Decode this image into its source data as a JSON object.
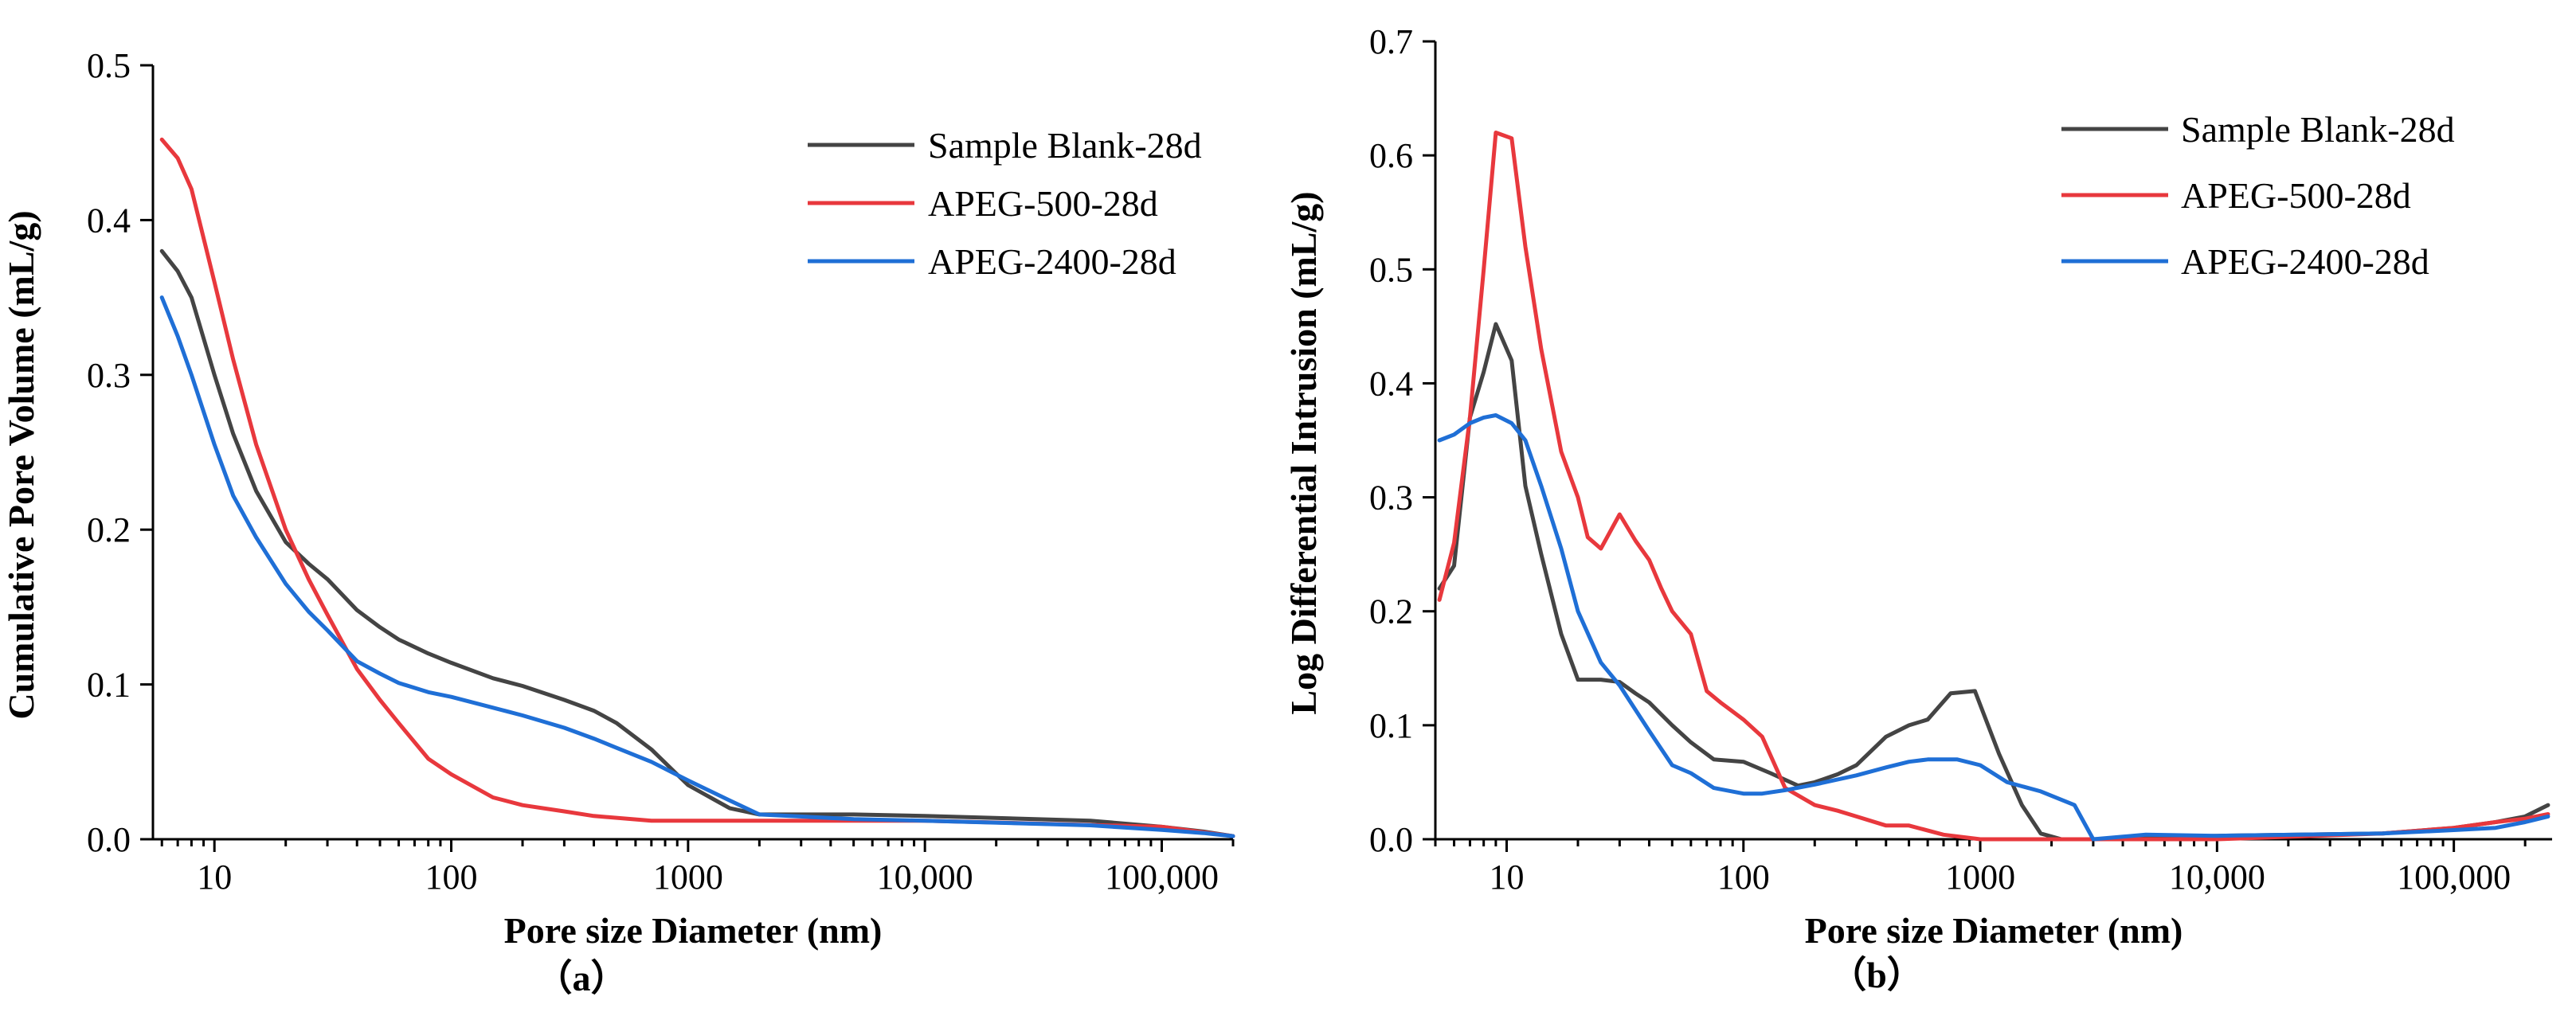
{
  "chart_data": [
    {
      "type": "line",
      "panel_label": "（a）",
      "xlabel": "Pore size Diameter (nm)",
      "ylabel": "Cumulative Pore Volume (mL/g)",
      "xscale": "log",
      "xlim": [
        5.5,
        200000
      ],
      "ylim": [
        0,
        0.5
      ],
      "xticks": [
        {
          "value": 10,
          "label": "10"
        },
        {
          "value": 100,
          "label": "100"
        },
        {
          "value": 1000,
          "label": "1000"
        },
        {
          "value": 10000,
          "label": "10,000"
        },
        {
          "value": 100000,
          "label": "100,000"
        }
      ],
      "yticks": [
        {
          "value": 0,
          "label": "0.0"
        },
        {
          "value": 0.1,
          "label": "0.1"
        },
        {
          "value": 0.2,
          "label": "0.2"
        },
        {
          "value": 0.3,
          "label": "0.3"
        },
        {
          "value": 0.4,
          "label": "0.4"
        },
        {
          "value": 0.5,
          "label": "0.5"
        }
      ],
      "legend_position": "top-right",
      "series": [
        {
          "name": "Sample Blank-28d",
          "color": "#444444",
          "x": [
            6,
            7,
            8,
            10,
            12,
            15,
            20,
            25,
            30,
            40,
            50,
            60,
            80,
            100,
            150,
            200,
            300,
            400,
            500,
            700,
            1000,
            1500,
            2000,
            5000,
            10000,
            50000,
            100000,
            150000,
            200000
          ],
          "y": [
            0.38,
            0.367,
            0.35,
            0.3,
            0.262,
            0.225,
            0.192,
            0.178,
            0.168,
            0.148,
            0.137,
            0.129,
            0.12,
            0.114,
            0.104,
            0.099,
            0.09,
            0.083,
            0.075,
            0.058,
            0.035,
            0.02,
            0.016,
            0.016,
            0.015,
            0.012,
            0.008,
            0.005,
            0.002
          ]
        },
        {
          "name": "APEG-500-28d",
          "color": "#e8383d",
          "x": [
            6,
            7,
            8,
            10,
            12,
            15,
            20,
            25,
            30,
            40,
            50,
            60,
            80,
            100,
            150,
            200,
            300,
            400,
            700,
            1000,
            2000,
            10000,
            100000,
            200000
          ],
          "y": [
            0.452,
            0.44,
            0.42,
            0.36,
            0.31,
            0.255,
            0.2,
            0.168,
            0.145,
            0.11,
            0.09,
            0.075,
            0.052,
            0.042,
            0.027,
            0.022,
            0.018,
            0.015,
            0.012,
            0.012,
            0.012,
            0.012,
            0.008,
            0.002
          ]
        },
        {
          "name": "APEG-2400-28d",
          "color": "#1f6fd6",
          "x": [
            6,
            7,
            8,
            10,
            12,
            15,
            20,
            25,
            30,
            40,
            50,
            60,
            80,
            100,
            150,
            200,
            300,
            400,
            500,
            700,
            1000,
            1500,
            2000,
            5000,
            10000,
            50000,
            100000,
            150000,
            200000
          ],
          "y": [
            0.35,
            0.325,
            0.3,
            0.255,
            0.222,
            0.195,
            0.165,
            0.147,
            0.135,
            0.115,
            0.107,
            0.101,
            0.095,
            0.092,
            0.085,
            0.08,
            0.072,
            0.065,
            0.059,
            0.05,
            0.038,
            0.025,
            0.016,
            0.013,
            0.012,
            0.009,
            0.006,
            0.004,
            0.002
          ]
        }
      ]
    },
    {
      "type": "line",
      "panel_label": "（b）",
      "xlabel": "Pore size Diameter (nm)",
      "ylabel": "Log Differential Intrusion (mL/g)",
      "xscale": "log",
      "xlim": [
        5,
        260000
      ],
      "ylim": [
        0,
        0.7
      ],
      "xticks": [
        {
          "value": 10,
          "label": "10"
        },
        {
          "value": 100,
          "label": "100"
        },
        {
          "value": 1000,
          "label": "1000"
        },
        {
          "value": 10000,
          "label": "10,000"
        },
        {
          "value": 100000,
          "label": "100,000"
        }
      ],
      "yticks": [
        {
          "value": 0,
          "label": "0.0"
        },
        {
          "value": 0.1,
          "label": "0.1"
        },
        {
          "value": 0.2,
          "label": "0.2"
        },
        {
          "value": 0.3,
          "label": "0.3"
        },
        {
          "value": 0.4,
          "label": "0.4"
        },
        {
          "value": 0.5,
          "label": "0.5"
        },
        {
          "value": 0.6,
          "label": "0.6"
        },
        {
          "value": 0.7,
          "label": "0.7"
        }
      ],
      "legend_position": "top-right",
      "series": [
        {
          "name": "Sample Blank-28d",
          "color": "#444444",
          "x": [
            5.2,
            6,
            7,
            8,
            9,
            10.5,
            12,
            14,
            17,
            20,
            25,
            30,
            35,
            40,
            50,
            60,
            75,
            100,
            130,
            170,
            200,
            250,
            300,
            400,
            500,
            600,
            750,
            950,
            1200,
            1500,
            1800,
            2200,
            3000,
            10000,
            50000,
            100000,
            150000,
            200000,
            250000
          ],
          "y": [
            0.22,
            0.24,
            0.37,
            0.41,
            0.452,
            0.42,
            0.31,
            0.25,
            0.18,
            0.14,
            0.14,
            0.138,
            0.128,
            0.12,
            0.1,
            0.085,
            0.07,
            0.068,
            0.058,
            0.047,
            0.05,
            0.057,
            0.065,
            0.09,
            0.1,
            0.105,
            0.128,
            0.13,
            0.075,
            0.03,
            0.005,
            0,
            0,
            0.003,
            0.005,
            0.01,
            0.015,
            0.02,
            0.03
          ]
        },
        {
          "name": "APEG-500-28d",
          "color": "#e8383d",
          "x": [
            5.2,
            6,
            7,
            8,
            9,
            10.5,
            12,
            14,
            17,
            20,
            22,
            25,
            30,
            35,
            40,
            45,
            50,
            60,
            70,
            80,
            100,
            120,
            150,
            200,
            250,
            300,
            400,
            500,
            700,
            1000,
            2000,
            10000,
            50000,
            100000,
            150000,
            200000,
            250000
          ],
          "y": [
            0.21,
            0.26,
            0.37,
            0.5,
            0.62,
            0.615,
            0.52,
            0.43,
            0.34,
            0.3,
            0.265,
            0.255,
            0.285,
            0.262,
            0.245,
            0.22,
            0.2,
            0.18,
            0.13,
            0.12,
            0.105,
            0.09,
            0.045,
            0.03,
            0.025,
            0.02,
            0.012,
            0.012,
            0.004,
            0,
            0,
            0,
            0.005,
            0.01,
            0.015,
            0.018,
            0.022
          ]
        },
        {
          "name": "APEG-2400-28d",
          "color": "#1f6fd6",
          "x": [
            5.2,
            6,
            7,
            8,
            9,
            10.5,
            12,
            14,
            17,
            20,
            25,
            30,
            40,
            50,
            60,
            75,
            100,
            120,
            150,
            200,
            300,
            400,
            500,
            600,
            800,
            1000,
            1300,
            1800,
            2500,
            3000,
            5000,
            10000,
            50000,
            100000,
            150000,
            200000,
            250000
          ],
          "y": [
            0.35,
            0.355,
            0.365,
            0.37,
            0.372,
            0.365,
            0.35,
            0.31,
            0.255,
            0.2,
            0.155,
            0.135,
            0.095,
            0.065,
            0.058,
            0.045,
            0.04,
            0.04,
            0.043,
            0.048,
            0.056,
            0.063,
            0.068,
            0.07,
            0.07,
            0.065,
            0.05,
            0.042,
            0.03,
            0,
            0.004,
            0.003,
            0.005,
            0.008,
            0.01,
            0.015,
            0.02
          ]
        }
      ]
    }
  ]
}
